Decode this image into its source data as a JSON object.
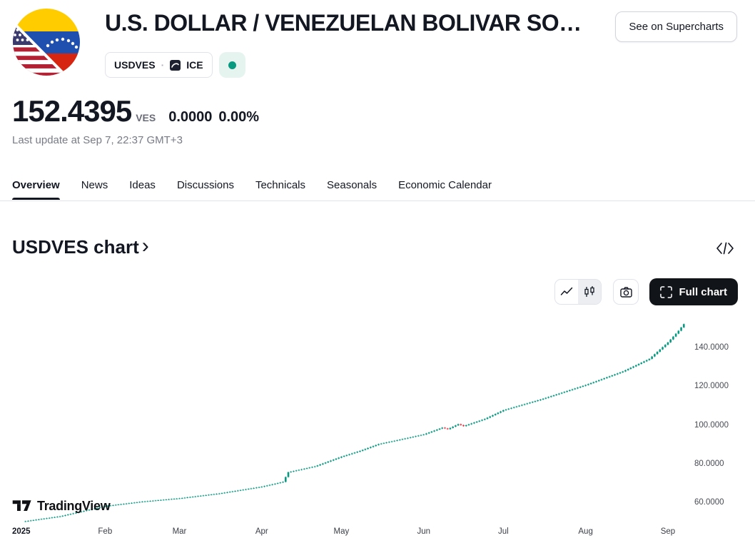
{
  "header": {
    "title": "U.S. DOLLAR / VENEZUELAN BOLIVAR SO…",
    "supercharts_button": "See on Supercharts",
    "symbol_badge": {
      "symbol": "USDVES",
      "separator": "·",
      "exchange": "ICE"
    },
    "market_status": "open"
  },
  "quote": {
    "price": "152.4395",
    "currency": "VES",
    "change": "0.0000",
    "change_percent": "0.00%",
    "last_update": "Last update at Sep 7, 22:37 GMT+3"
  },
  "tabs": [
    {
      "label": "Overview",
      "active": true
    },
    {
      "label": "News",
      "active": false
    },
    {
      "label": "Ideas",
      "active": false
    },
    {
      "label": "Discussions",
      "active": false
    },
    {
      "label": "Technicals",
      "active": false
    },
    {
      "label": "Seasonals",
      "active": false
    },
    {
      "label": "Economic Calendar",
      "active": false
    }
  ],
  "chart_section": {
    "title": "USDVES chart",
    "chevron": "›",
    "full_chart_label": "Full chart"
  },
  "watermark": "TradingView",
  "icons": {
    "market_status": "green-dot",
    "chart_type_buttons": [
      "line-chart-icon",
      "candlestick-icon"
    ],
    "snapshot": "camera-icon",
    "full_chart": "fullscreen-corners-icon",
    "embed": "code-brackets-icon"
  },
  "colors": {
    "text": "#131722",
    "muted_text": "#787b86",
    "border": "#e0e3eb",
    "status_green": "#089981",
    "status_bg": "#e6f4ef",
    "full_chart_button_bg": "#111418"
  },
  "chart_data": {
    "type": "candlestick",
    "symbol": "USDVES",
    "title": "USDVES chart",
    "last_price": 152.4395,
    "up_color": "#089981",
    "down_color": "#f23645",
    "grid": false,
    "legend": "none",
    "y_axis_side": "right",
    "y_ticks": [
      {
        "label": "140.0000",
        "value": 140
      },
      {
        "label": "120.0000",
        "value": 120
      },
      {
        "label": "100.0000",
        "value": 100
      },
      {
        "label": "80.0000",
        "value": 80
      },
      {
        "label": "60.0000",
        "value": 60
      }
    ],
    "y_range": [
      48,
      156
    ],
    "x_axis": {
      "year_label": "2025",
      "month_labels": [
        {
          "label": "Feb",
          "day": 31
        },
        {
          "label": "Mar",
          "day": 59
        },
        {
          "label": "Apr",
          "day": 90
        },
        {
          "label": "May",
          "day": 120
        },
        {
          "label": "Jun",
          "day": 151
        },
        {
          "label": "Jul",
          "day": 181
        },
        {
          "label": "Aug",
          "day": 212
        },
        {
          "label": "Sep",
          "day": 243
        }
      ]
    },
    "series": {
      "name": "USDVES daily close (values read from chart; day 0 = Jan 1 2025)",
      "days_total": 250,
      "anchor_points": [
        {
          "day": 0,
          "price": 50.5
        },
        {
          "day": 14,
          "price": 53.2
        },
        {
          "day": 31,
          "price": 58.5
        },
        {
          "day": 45,
          "price": 60.8
        },
        {
          "day": 59,
          "price": 62.5
        },
        {
          "day": 74,
          "price": 65.0
        },
        {
          "day": 90,
          "price": 68.5
        },
        {
          "day": 98,
          "price": 71.0
        },
        {
          "day": 100,
          "price": 76.0
        },
        {
          "day": 110,
          "price": 79.0
        },
        {
          "day": 120,
          "price": 84.0
        },
        {
          "day": 127,
          "price": 87.0
        },
        {
          "day": 134,
          "price": 90.5
        },
        {
          "day": 141,
          "price": 92.5
        },
        {
          "day": 151,
          "price": 95.5
        },
        {
          "day": 158,
          "price": 99.0
        },
        {
          "day": 160,
          "price": 98.2
        },
        {
          "day": 164,
          "price": 100.8
        },
        {
          "day": 166,
          "price": 99.8
        },
        {
          "day": 174,
          "price": 103.5
        },
        {
          "day": 181,
          "price": 108.0
        },
        {
          "day": 195,
          "price": 113.5
        },
        {
          "day": 212,
          "price": 121.0
        },
        {
          "day": 226,
          "price": 128.0
        },
        {
          "day": 236,
          "price": 134.5
        },
        {
          "day": 243,
          "price": 143.0
        },
        {
          "day": 247,
          "price": 149.0
        },
        {
          "day": 249,
          "price": 152.44
        }
      ]
    }
  }
}
